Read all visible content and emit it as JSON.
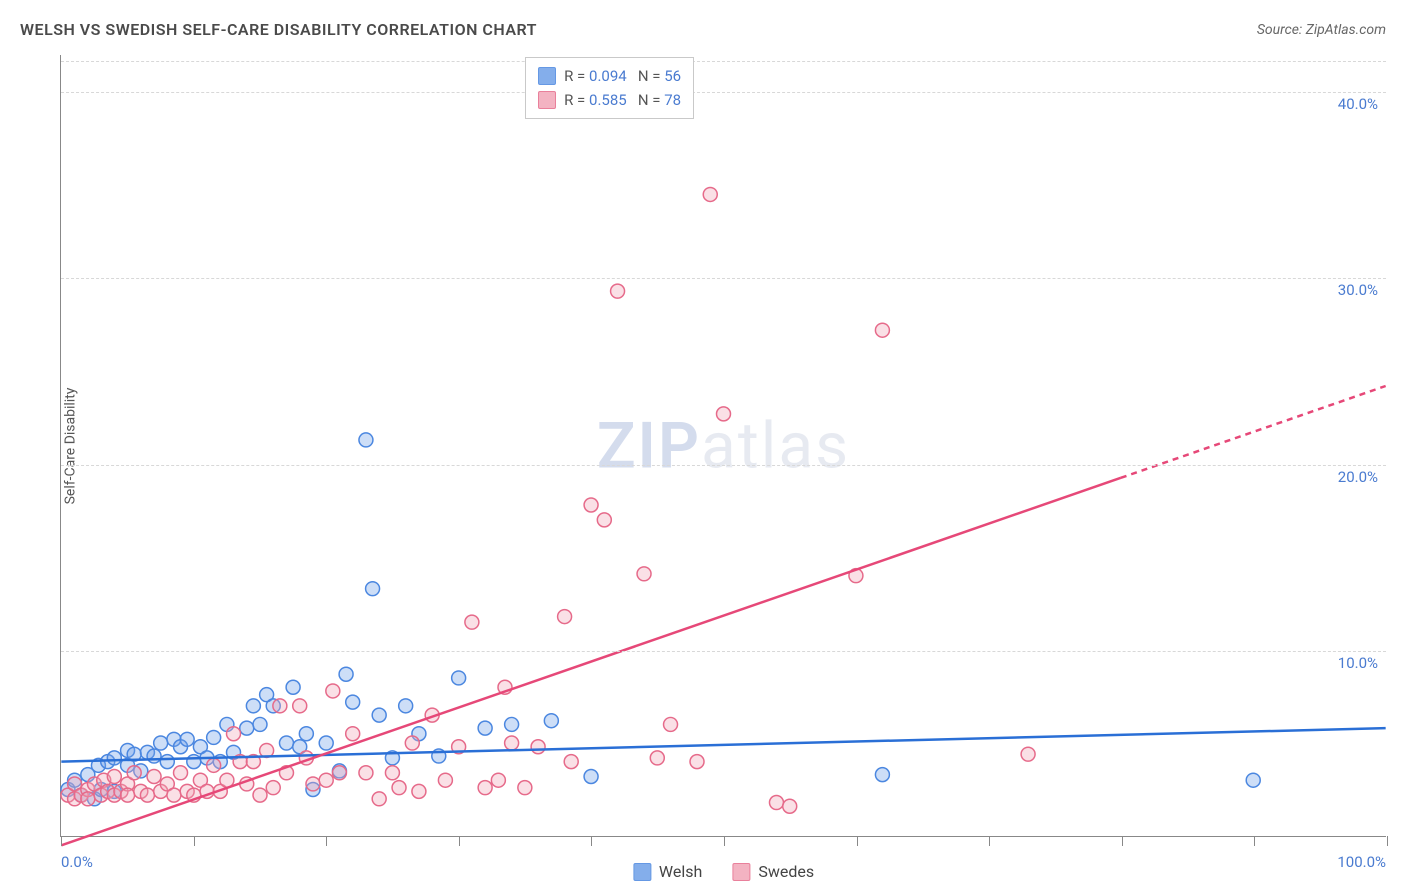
{
  "title": "WELSH VS SWEDISH SELF-CARE DISABILITY CORRELATION CHART",
  "source_label": "Source: ZipAtlas.com",
  "y_axis_label": "Self-Care Disability",
  "watermark": {
    "bold": "ZIP",
    "rest": "atlas"
  },
  "chart": {
    "type": "scatter",
    "background_color": "#ffffff",
    "grid_color": "#d8d8d8",
    "axis_color": "#888888",
    "text_color": "#555555",
    "value_color": "#4a7bd0",
    "xlim": [
      0,
      100
    ],
    "ylim": [
      0,
      42
    ],
    "y_ticks": [
      10,
      20,
      30,
      40
    ],
    "y_tick_labels": [
      "10.0%",
      "20.0%",
      "30.0%",
      "40.0%"
    ],
    "x_ticks": [
      0,
      10,
      20,
      30,
      40,
      50,
      60,
      70,
      80,
      90,
      100
    ],
    "x_min_label": "0.0%",
    "x_max_label": "100.0%",
    "marker_radius": 7,
    "marker_stroke_width": 1.5,
    "marker_fill_opacity": 0.35,
    "series": [
      {
        "name": "Welsh",
        "color": "#6fa0e8",
        "stroke": "#4b87e0",
        "R": "0.094",
        "N": "56",
        "trend": {
          "y_at_x0": 4.0,
          "y_at_x100": 5.8,
          "solid_until_x": 100,
          "line_color": "#2a6fd6",
          "line_width": 2.5
        },
        "points": [
          [
            0.5,
            2.5
          ],
          [
            1,
            3.0
          ],
          [
            1.5,
            2.2
          ],
          [
            2,
            3.3
          ],
          [
            2.5,
            2.0
          ],
          [
            2.8,
            3.8
          ],
          [
            3,
            2.5
          ],
          [
            3.5,
            4.0
          ],
          [
            4,
            2.4
          ],
          [
            4,
            4.2
          ],
          [
            5,
            3.8
          ],
          [
            5,
            4.6
          ],
          [
            5.5,
            4.4
          ],
          [
            6,
            3.5
          ],
          [
            6.5,
            4.5
          ],
          [
            7,
            4.3
          ],
          [
            7.5,
            5.0
          ],
          [
            8,
            4.0
          ],
          [
            8.5,
            5.2
          ],
          [
            9,
            4.8
          ],
          [
            9.5,
            5.2
          ],
          [
            10,
            4.0
          ],
          [
            10.5,
            4.8
          ],
          [
            11,
            4.2
          ],
          [
            11.5,
            5.3
          ],
          [
            12,
            4.0
          ],
          [
            12.5,
            6.0
          ],
          [
            13,
            4.5
          ],
          [
            14,
            5.8
          ],
          [
            14.5,
            7.0
          ],
          [
            15,
            6.0
          ],
          [
            15.5,
            7.6
          ],
          [
            16,
            7.0
          ],
          [
            17,
            5.0
          ],
          [
            17.5,
            8.0
          ],
          [
            18,
            4.8
          ],
          [
            18.5,
            5.5
          ],
          [
            19,
            2.5
          ],
          [
            20,
            5.0
          ],
          [
            21,
            3.5
          ],
          [
            21.5,
            8.7
          ],
          [
            22,
            7.2
          ],
          [
            23,
            21.3
          ],
          [
            23.5,
            13.3
          ],
          [
            24,
            6.5
          ],
          [
            25,
            4.2
          ],
          [
            26,
            7.0
          ],
          [
            27,
            5.5
          ],
          [
            28.5,
            4.3
          ],
          [
            30,
            8.5
          ],
          [
            32,
            5.8
          ],
          [
            34,
            6.0
          ],
          [
            37,
            6.2
          ],
          [
            40,
            3.2
          ],
          [
            62,
            3.3
          ],
          [
            90,
            3.0
          ]
        ]
      },
      {
        "name": "Swedes",
        "color": "#f2a6b8",
        "stroke": "#e66a8a",
        "R": "0.585",
        "N": "78",
        "trend": {
          "y_at_x0": -0.5,
          "y_at_x100": 24.2,
          "solid_until_x": 80,
          "line_color": "#e64878",
          "line_width": 2.5
        },
        "points": [
          [
            0.5,
            2.2
          ],
          [
            1,
            2.0
          ],
          [
            1,
            2.8
          ],
          [
            1.5,
            2.2
          ],
          [
            2,
            2.5
          ],
          [
            2,
            2.0
          ],
          [
            2.5,
            2.8
          ],
          [
            3,
            2.2
          ],
          [
            3.2,
            3.0
          ],
          [
            3.5,
            2.4
          ],
          [
            4,
            2.2
          ],
          [
            4,
            3.2
          ],
          [
            4.5,
            2.4
          ],
          [
            5,
            2.8
          ],
          [
            5,
            2.2
          ],
          [
            5.5,
            3.4
          ],
          [
            6,
            2.4
          ],
          [
            6.5,
            2.2
          ],
          [
            7,
            3.2
          ],
          [
            7.5,
            2.4
          ],
          [
            8,
            2.8
          ],
          [
            8.5,
            2.2
          ],
          [
            9,
            3.4
          ],
          [
            9.5,
            2.4
          ],
          [
            10,
            2.2
          ],
          [
            10.5,
            3.0
          ],
          [
            11,
            2.4
          ],
          [
            11.5,
            3.8
          ],
          [
            12,
            2.4
          ],
          [
            12.5,
            3.0
          ],
          [
            13,
            5.5
          ],
          [
            13.5,
            4.0
          ],
          [
            14,
            2.8
          ],
          [
            14.5,
            4.0
          ],
          [
            15,
            2.2
          ],
          [
            15.5,
            4.6
          ],
          [
            16,
            2.6
          ],
          [
            16.5,
            7.0
          ],
          [
            17,
            3.4
          ],
          [
            18,
            7.0
          ],
          [
            18.5,
            4.2
          ],
          [
            19,
            2.8
          ],
          [
            20,
            3.0
          ],
          [
            20.5,
            7.8
          ],
          [
            21,
            3.4
          ],
          [
            22,
            5.5
          ],
          [
            23,
            3.4
          ],
          [
            24,
            2.0
          ],
          [
            25,
            3.4
          ],
          [
            25.5,
            2.6
          ],
          [
            26.5,
            5.0
          ],
          [
            27,
            2.4
          ],
          [
            28,
            6.5
          ],
          [
            29,
            3.0
          ],
          [
            30,
            4.8
          ],
          [
            31,
            11.5
          ],
          [
            32,
            2.6
          ],
          [
            33,
            3.0
          ],
          [
            33.5,
            8.0
          ],
          [
            34,
            5.0
          ],
          [
            35,
            2.6
          ],
          [
            36,
            4.8
          ],
          [
            38,
            11.8
          ],
          [
            38.5,
            4.0
          ],
          [
            40,
            17.8
          ],
          [
            41,
            17.0
          ],
          [
            42,
            29.3
          ],
          [
            44,
            14.1
          ],
          [
            45,
            4.2
          ],
          [
            46,
            6.0
          ],
          [
            48,
            4.0
          ],
          [
            49,
            34.5
          ],
          [
            50,
            22.7
          ],
          [
            54,
            1.8
          ],
          [
            55,
            1.6
          ],
          [
            60,
            14.0
          ],
          [
            62,
            27.2
          ],
          [
            73,
            4.4
          ]
        ]
      }
    ],
    "legend_bottom": [
      {
        "label": "Welsh",
        "color": "#6fa0e8",
        "stroke": "#4b87e0"
      },
      {
        "label": "Swedes",
        "color": "#f2a6b8",
        "stroke": "#e66a8a"
      }
    ]
  }
}
